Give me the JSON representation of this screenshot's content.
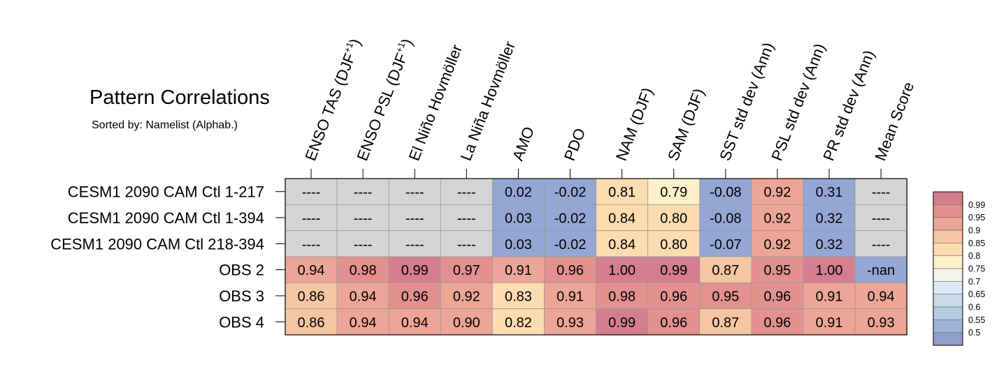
{
  "chart_data": {
    "type": "heatmap",
    "title": "Pattern Correlations",
    "subtitle": "Sorted by: Namelist (Alphab.)",
    "columns": [
      {
        "base": "ENSO TAS (DJF",
        "sup": "+1",
        "end": ")"
      },
      {
        "base": "ENSO PSL (DJF",
        "sup": "+1",
        "end": ")"
      },
      {
        "base": "El Niño Hovmöller"
      },
      {
        "base": "La Niña Hovmöller"
      },
      {
        "base": "AMO"
      },
      {
        "base": "PDO"
      },
      {
        "base": "NAM (DJF)"
      },
      {
        "base": "SAM (DJF)"
      },
      {
        "base": "SST std dev (Ann)"
      },
      {
        "base": "PSL std dev (Ann)"
      },
      {
        "base": "PR std dev (Ann)"
      },
      {
        "base": "Mean Score"
      }
    ],
    "rows": [
      "CESM1 2090 CAM Ctl 1-217",
      "CESM1 2090 CAM Ctl 1-394",
      "CESM1 2090 CAM Ctl 218-394",
      "OBS 2",
      "OBS 3",
      "OBS 4"
    ],
    "values": [
      [
        "----",
        "----",
        "----",
        "----",
        "0.02",
        "-0.02",
        "0.81",
        "0.79",
        "-0.08",
        "0.92",
        "0.31",
        "----"
      ],
      [
        "----",
        "----",
        "----",
        "----",
        "0.03",
        "-0.02",
        "0.84",
        "0.80",
        "-0.08",
        "0.92",
        "0.32",
        "----"
      ],
      [
        "----",
        "----",
        "----",
        "----",
        "0.03",
        "-0.02",
        "0.84",
        "0.80",
        "-0.07",
        "0.92",
        "0.32",
        "----"
      ],
      [
        "0.94",
        "0.98",
        "0.99",
        "0.97",
        "0.91",
        "0.96",
        "1.00",
        "0.99",
        "0.87",
        "0.95",
        "1.00",
        "-nan"
      ],
      [
        "0.86",
        "0.94",
        "0.96",
        "0.92",
        "0.83",
        "0.91",
        "0.98",
        "0.96",
        "0.95",
        "0.96",
        "0.91",
        "0.94"
      ],
      [
        "0.86",
        "0.94",
        "0.94",
        "0.90",
        "0.82",
        "0.93",
        "0.99",
        "0.96",
        "0.87",
        "0.96",
        "0.91",
        "0.93"
      ]
    ],
    "colorbar": {
      "labels": [
        "0.99",
        "0.95",
        "0.9",
        "0.85",
        "0.8",
        "0.75",
        "0.7",
        "0.65",
        "0.6",
        "0.55",
        "0.5"
      ],
      "colors": [
        "#d47e8f",
        "#e2918f",
        "#eca596",
        "#f6c6a2",
        "#fddcb0",
        "#fff1c9",
        "#f3f3ea",
        "#deebf3",
        "#c8dbea",
        "#b3cbe3",
        "#9eb4d8",
        "#8f9ece"
      ]
    },
    "missing_color": "#d4d4d4",
    "below_range_color": "#94a6d3"
  }
}
